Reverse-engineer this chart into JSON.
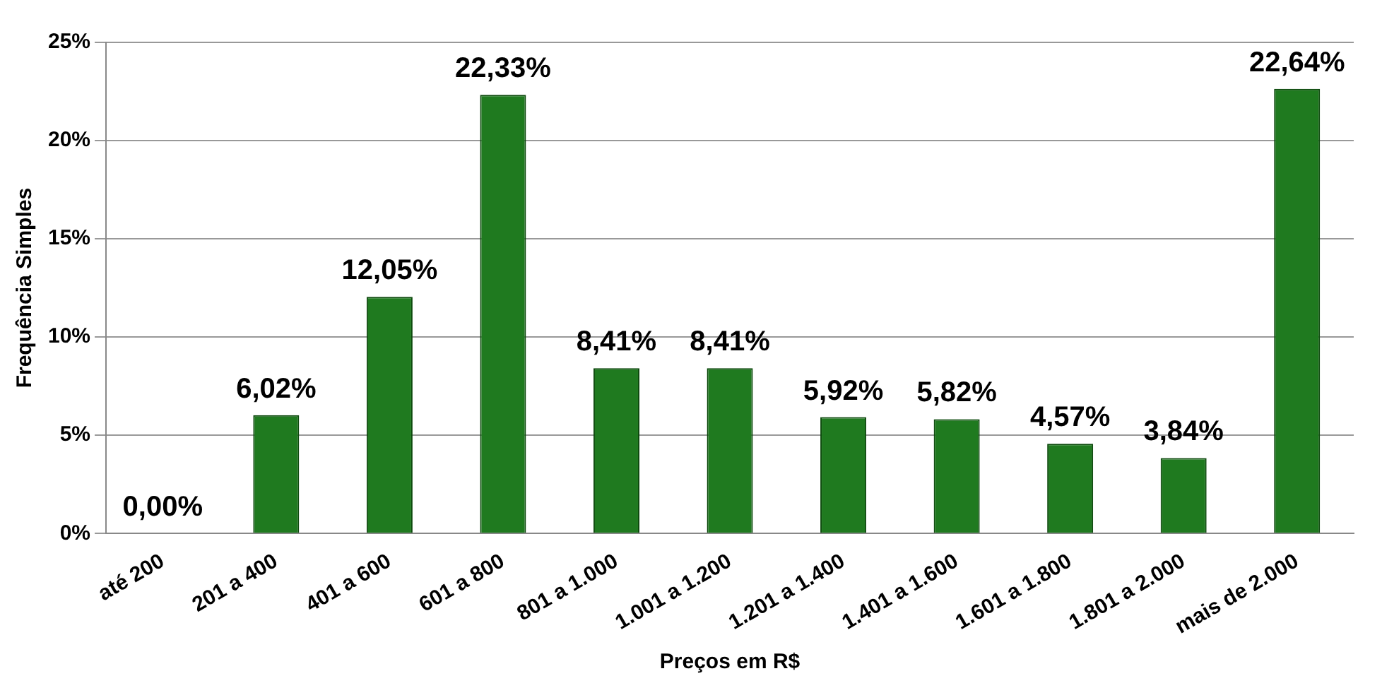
{
  "chart_data": {
    "type": "bar",
    "xlabel": "Preços em R$",
    "ylabel": "Frequência Simples",
    "categories": [
      "até 200",
      "201 a 400",
      "401 a 600",
      "601 a 800",
      "801 a 1.000",
      "1.001 a 1.200",
      "1.201 a 1.400",
      "1.401 a 1.600",
      "1.601 a 1.800",
      "1.801 a 2.000",
      "mais de 2.000"
    ],
    "values": [
      0,
      6.02,
      12.05,
      22.33,
      8.41,
      8.41,
      5.92,
      5.82,
      4.57,
      3.84,
      22.64
    ],
    "value_labels": [
      "0,00%",
      "6,02%",
      "12,05%",
      "22,33%",
      "8,41%",
      "8,41%",
      "5,92%",
      "5,82%",
      "4,57%",
      "3,84%",
      "22,64%"
    ],
    "color": "#1f7a1f",
    "ylim": [
      0,
      25
    ],
    "yticks": [
      {
        "value": 0,
        "label": "0%"
      },
      {
        "value": 5,
        "label": "5%"
      },
      {
        "value": 10,
        "label": "10%"
      },
      {
        "value": 15,
        "label": "15%"
      },
      {
        "value": 20,
        "label": "20%"
      },
      {
        "value": 25,
        "label": "25%"
      }
    ],
    "grid": "y",
    "legend": false
  }
}
